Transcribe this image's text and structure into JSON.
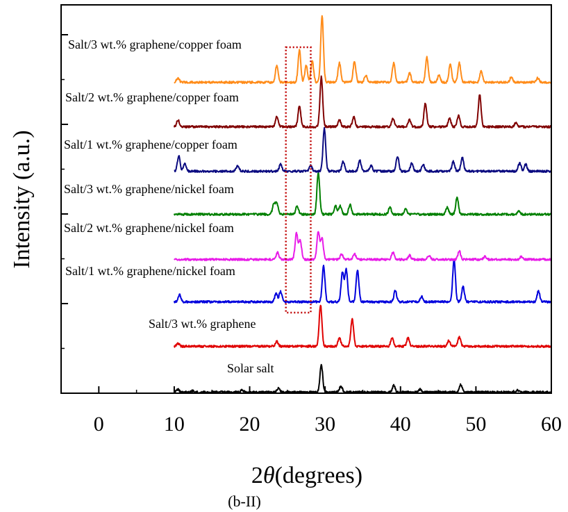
{
  "chart_data": {
    "type": "line",
    "xlabel_prefix": "2",
    "xlabel_theta": "θ",
    "xlabel_suffix": "(degrees)",
    "ylabel": "Intensity (a.u.)",
    "caption": "(b-II)",
    "xlim": [
      -5,
      60
    ],
    "xticks": [
      0,
      10,
      20,
      30,
      40,
      50,
      60
    ],
    "grid": false,
    "legend": "inline labels above each trace",
    "highlight_box": {
      "x_range": [
        24.8,
        28.1
      ],
      "color": "#c00000",
      "style": "dotted"
    },
    "series": [
      {
        "name": "Solar salt",
        "color": "#000000",
        "peaks": [
          [
            10.5,
            4
          ],
          [
            12.4,
            2
          ],
          [
            19,
            3
          ],
          [
            23.8,
            6
          ],
          [
            29.5,
            40
          ],
          [
            32.1,
            9
          ],
          [
            39.1,
            10
          ],
          [
            42.6,
            4
          ],
          [
            48,
            11
          ],
          [
            55.5,
            3
          ]
        ]
      },
      {
        "name": "Salt/3 wt.% graphene",
        "color": "#e00000",
        "peaks": [
          [
            10.5,
            4
          ],
          [
            23.6,
            7
          ],
          [
            29.4,
            60
          ],
          [
            31.9,
            12
          ],
          [
            33.6,
            40
          ],
          [
            38.9,
            13
          ],
          [
            41,
            12
          ],
          [
            46.4,
            8
          ],
          [
            47.8,
            13
          ]
        ]
      },
      {
        "name": "Salt/1 wt.% graphene/nickel foam",
        "color": "#0000dd",
        "peaks": [
          [
            10.7,
            10
          ],
          [
            23.5,
            12
          ],
          [
            24.1,
            15
          ],
          [
            29.8,
            52
          ],
          [
            32.3,
            42
          ],
          [
            32.8,
            46
          ],
          [
            34.3,
            46
          ],
          [
            39.3,
            16
          ],
          [
            42.8,
            8
          ],
          [
            47.1,
            60
          ],
          [
            48.3,
            22
          ],
          [
            58.3,
            16
          ]
        ]
      },
      {
        "name": "Salt/2 wt.% graphene/nickel foam",
        "color": "#e81ce8",
        "peaks": [
          [
            23.7,
            10
          ],
          [
            26.2,
            38
          ],
          [
            26.7,
            28
          ],
          [
            29.1,
            40
          ],
          [
            29.6,
            30
          ],
          [
            32.2,
            8
          ],
          [
            33.9,
            8
          ],
          [
            39,
            10
          ],
          [
            41.2,
            6
          ],
          [
            43.8,
            6
          ],
          [
            47.8,
            12
          ],
          [
            51.2,
            4
          ],
          [
            56,
            4
          ]
        ]
      },
      {
        "name": "Salt/3 wt.% graphene/nickel foam",
        "color": "#008000",
        "peaks": [
          [
            23.2,
            14
          ],
          [
            23.6,
            16
          ],
          [
            26.3,
            12
          ],
          [
            29.1,
            60
          ],
          [
            31.4,
            12
          ],
          [
            32,
            12
          ],
          [
            33.3,
            14
          ],
          [
            38.6,
            10
          ],
          [
            40.7,
            8
          ],
          [
            46.2,
            10
          ],
          [
            47.5,
            24
          ],
          [
            55.7,
            4
          ]
        ]
      },
      {
        "name": "Salt/1 wt.% graphene/copper foam",
        "color": "#0a0a80",
        "peaks": [
          [
            10.6,
            22
          ],
          [
            11.4,
            12
          ],
          [
            18.4,
            8
          ],
          [
            24.1,
            10
          ],
          [
            28.1,
            8
          ],
          [
            29.9,
            62
          ],
          [
            32.4,
            14
          ],
          [
            34.6,
            16
          ],
          [
            36.1,
            8
          ],
          [
            39.6,
            22
          ],
          [
            41.5,
            12
          ],
          [
            43,
            10
          ],
          [
            47,
            14
          ],
          [
            48.2,
            20
          ],
          [
            55.8,
            12
          ],
          [
            56.6,
            10
          ]
        ]
      },
      {
        "name": "Salt/2 wt.% graphene/copper foam",
        "color": "#800000",
        "peaks": [
          [
            10.5,
            10
          ],
          [
            23.6,
            14
          ],
          [
            26.6,
            30
          ],
          [
            29.5,
            72
          ],
          [
            31.9,
            10
          ],
          [
            33.8,
            14
          ],
          [
            39,
            12
          ],
          [
            41.2,
            10
          ],
          [
            43.3,
            34
          ],
          [
            46.5,
            12
          ],
          [
            47.7,
            16
          ],
          [
            50.5,
            46
          ],
          [
            55.3,
            6
          ]
        ]
      },
      {
        "name": "Salt/3 wt.% graphene/copper foam",
        "color": "#ff8c1a",
        "peaks": [
          [
            10.5,
            6
          ],
          [
            23.6,
            24
          ],
          [
            26.6,
            46
          ],
          [
            27.5,
            24
          ],
          [
            28.3,
            30
          ],
          [
            29.6,
            96
          ],
          [
            31.9,
            28
          ],
          [
            33.9,
            30
          ],
          [
            35.4,
            10
          ],
          [
            39.1,
            28
          ],
          [
            41.2,
            14
          ],
          [
            43.5,
            36
          ],
          [
            45.1,
            10
          ],
          [
            46.6,
            26
          ],
          [
            47.8,
            28
          ],
          [
            50.7,
            16
          ],
          [
            54.7,
            8
          ],
          [
            58.2,
            6
          ]
        ]
      }
    ]
  }
}
